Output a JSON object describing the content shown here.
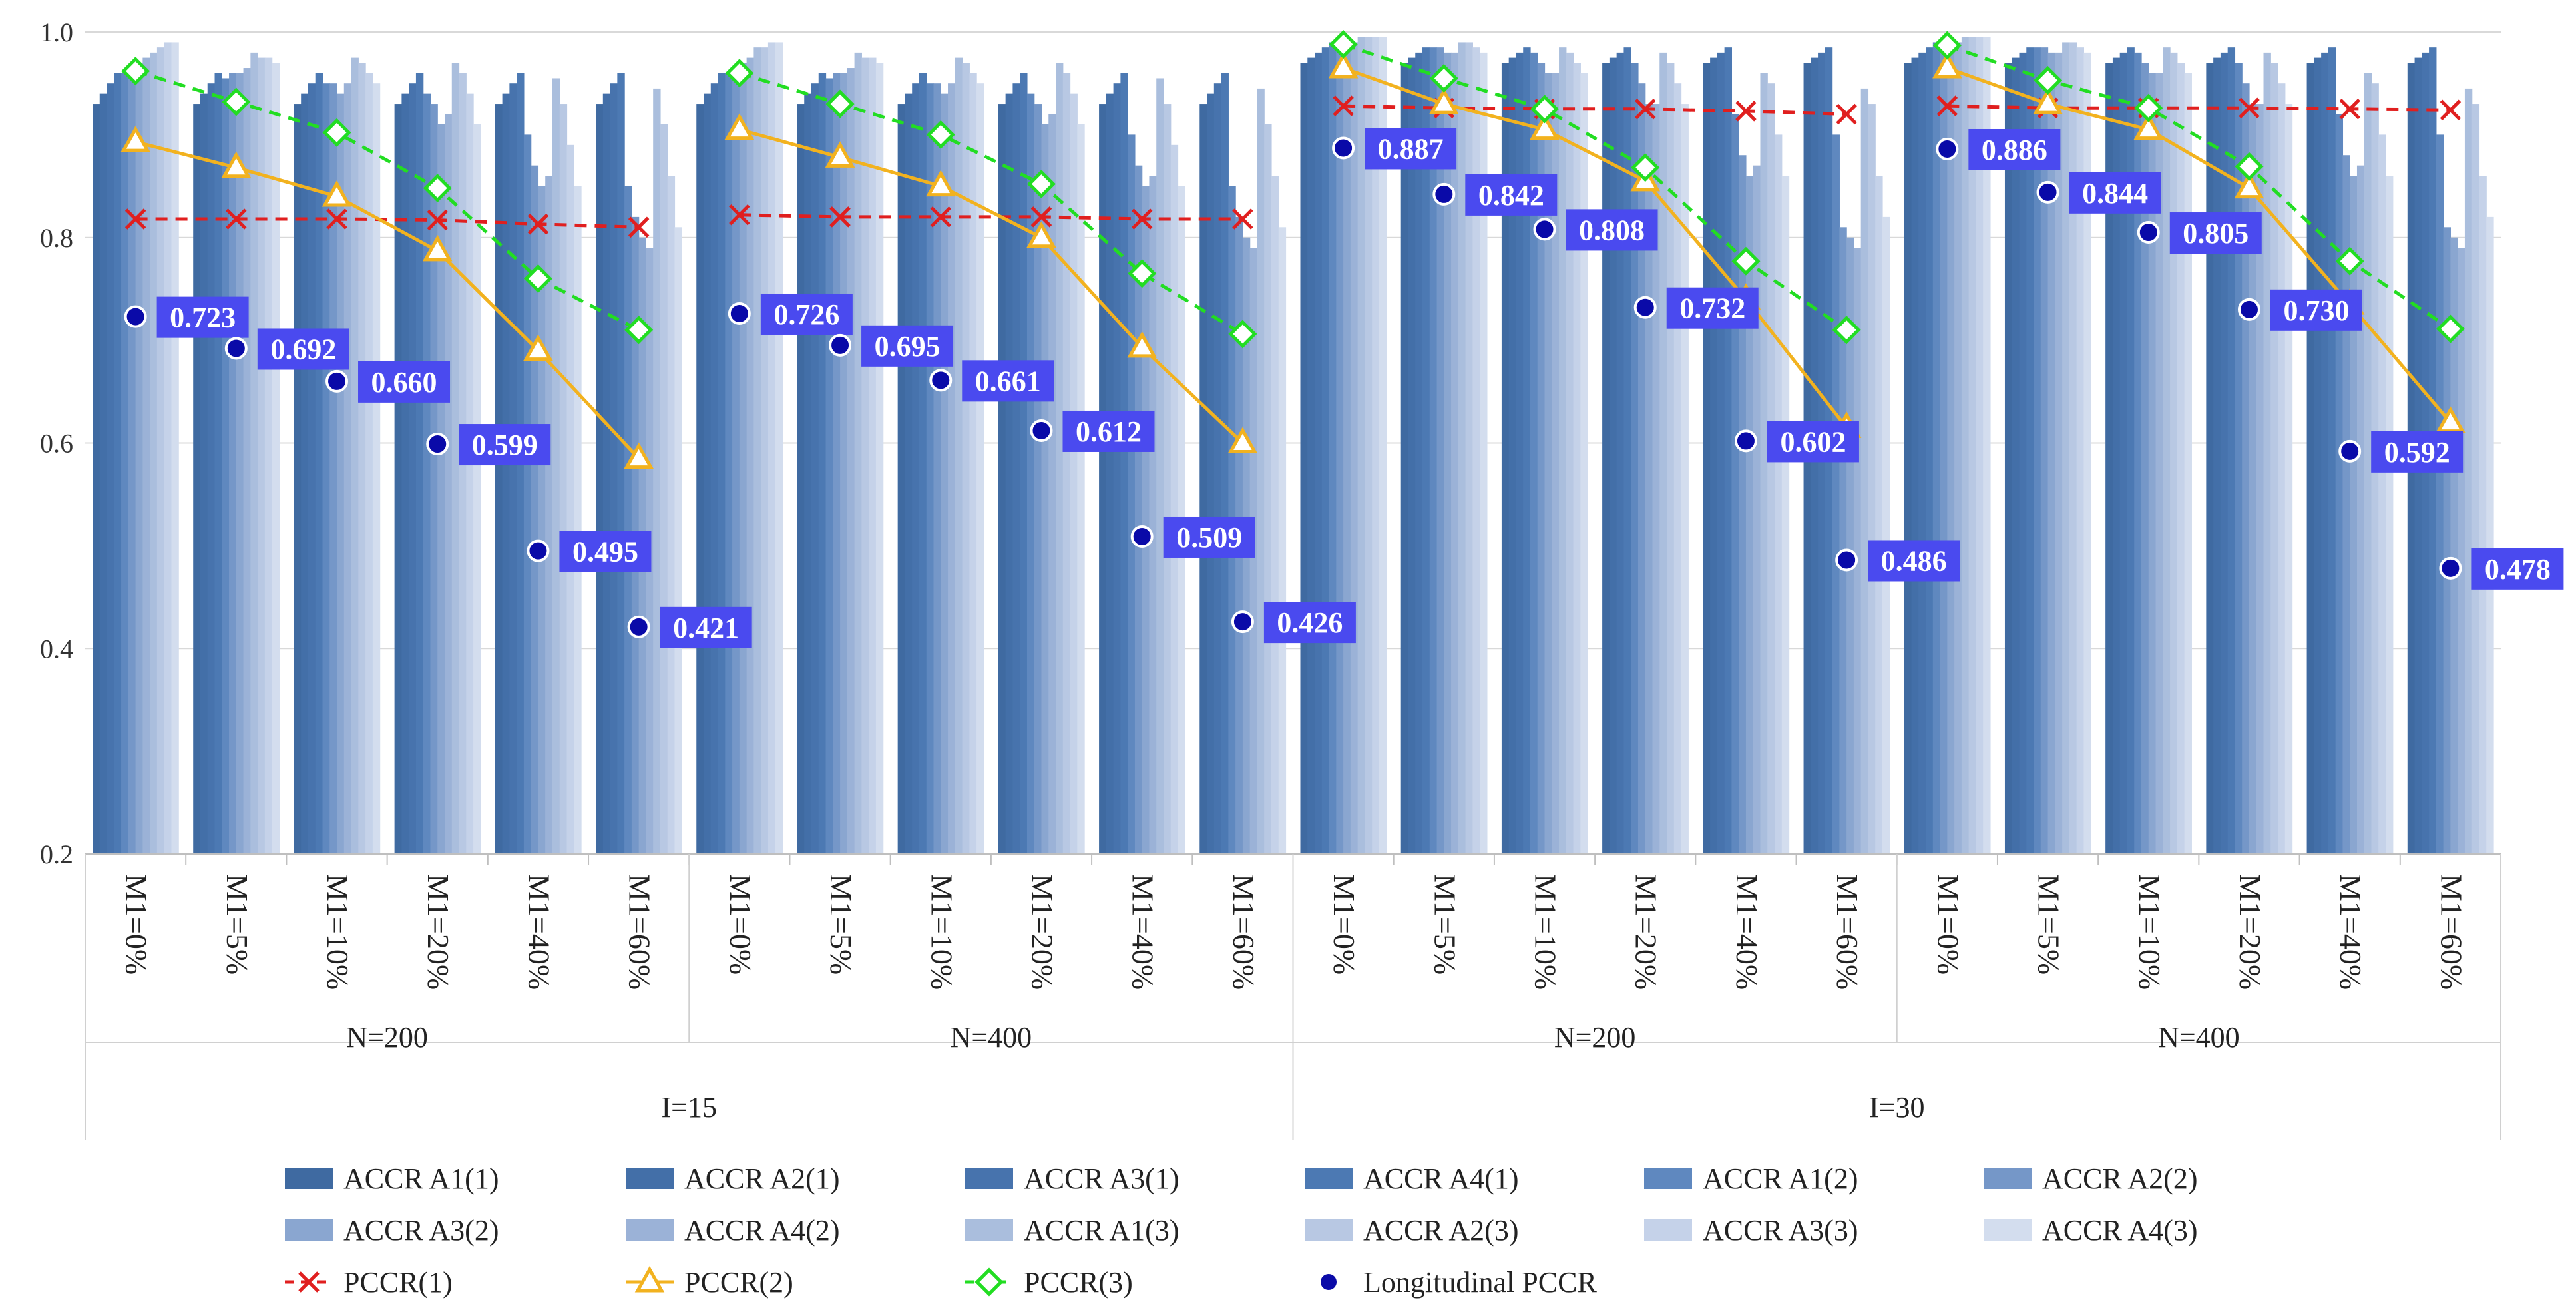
{
  "chart_data": {
    "type": "bar",
    "title": "",
    "xlabel": "",
    "ylabel": "",
    "ylim": [
      0.2,
      1.0
    ],
    "yticks": [
      "0.2",
      "0.4",
      "0.6",
      "0.8",
      "1.0"
    ],
    "grid": true,
    "legend_position": "bottom",
    "x_levels": {
      "categories": [
        "M1=0%",
        "M1=5%",
        "M1=10%",
        "M1=20%",
        "M1=40%",
        "M1=60%",
        "M1=0%",
        "M1=5%",
        "M1=10%",
        "M1=20%",
        "M1=40%",
        "M1=60%",
        "M1=0%",
        "M1=5%",
        "M1=10%",
        "M1=20%",
        "M1=40%",
        "M1=60%",
        "M1=0%",
        "M1=5%",
        "M1=10%",
        "M1=20%",
        "M1=40%",
        "M1=60%"
      ],
      "n_groups": [
        "N=200",
        "N=400",
        "N=200",
        "N=400"
      ],
      "i_groups": [
        "I=15",
        "I=30"
      ]
    },
    "bar_series": [
      {
        "name": "ACCR A1(1)",
        "color": "#3f6aa1",
        "values": [
          0.93,
          0.93,
          0.93,
          0.93,
          0.93,
          0.93,
          0.93,
          0.93,
          0.93,
          0.93,
          0.93,
          0.93,
          0.97,
          0.97,
          0.97,
          0.97,
          0.97,
          0.97,
          0.97,
          0.97,
          0.97,
          0.97,
          0.97,
          0.97
        ]
      },
      {
        "name": "ACCR A2(1)",
        "color": "#436fa8",
        "values": [
          0.94,
          0.94,
          0.94,
          0.94,
          0.94,
          0.94,
          0.94,
          0.94,
          0.94,
          0.94,
          0.94,
          0.94,
          0.975,
          0.975,
          0.975,
          0.975,
          0.975,
          0.975,
          0.975,
          0.975,
          0.975,
          0.975,
          0.975,
          0.975
        ]
      },
      {
        "name": "ACCR A3(1)",
        "color": "#4773ad",
        "values": [
          0.95,
          0.95,
          0.95,
          0.95,
          0.95,
          0.95,
          0.95,
          0.95,
          0.95,
          0.95,
          0.95,
          0.95,
          0.98,
          0.98,
          0.98,
          0.98,
          0.98,
          0.98,
          0.98,
          0.98,
          0.98,
          0.98,
          0.98,
          0.98
        ]
      },
      {
        "name": "ACCR A4(1)",
        "color": "#4c79b3",
        "values": [
          0.96,
          0.96,
          0.96,
          0.96,
          0.96,
          0.96,
          0.96,
          0.96,
          0.96,
          0.96,
          0.96,
          0.96,
          0.985,
          0.985,
          0.985,
          0.985,
          0.985,
          0.985,
          0.985,
          0.985,
          0.985,
          0.985,
          0.985,
          0.985
        ]
      },
      {
        "name": "ACCR A1(2)",
        "color": "#5f88bf",
        "values": [
          0.96,
          0.955,
          0.95,
          0.94,
          0.9,
          0.85,
          0.96,
          0.955,
          0.95,
          0.94,
          0.9,
          0.85,
          0.99,
          0.985,
          0.98,
          0.97,
          0.92,
          0.9,
          0.99,
          0.985,
          0.98,
          0.97,
          0.92,
          0.9
        ]
      },
      {
        "name": "ACCR A2(2)",
        "color": "#7597c8",
        "values": [
          0.965,
          0.96,
          0.95,
          0.93,
          0.87,
          0.82,
          0.965,
          0.96,
          0.95,
          0.93,
          0.87,
          0.82,
          0.99,
          0.985,
          0.97,
          0.95,
          0.88,
          0.81,
          0.99,
          0.985,
          0.97,
          0.95,
          0.88,
          0.81
        ]
      },
      {
        "name": "ACCR A3(2)",
        "color": "#8aa6d0",
        "values": [
          0.97,
          0.96,
          0.94,
          0.91,
          0.85,
          0.8,
          0.97,
          0.96,
          0.94,
          0.91,
          0.85,
          0.8,
          0.99,
          0.98,
          0.96,
          0.93,
          0.86,
          0.8,
          0.99,
          0.98,
          0.96,
          0.93,
          0.86,
          0.8
        ]
      },
      {
        "name": "ACCR A4(2)",
        "color": "#9bb2d7",
        "values": [
          0.975,
          0.965,
          0.95,
          0.92,
          0.86,
          0.79,
          0.975,
          0.965,
          0.95,
          0.92,
          0.86,
          0.79,
          0.99,
          0.98,
          0.96,
          0.93,
          0.87,
          0.79,
          0.99,
          0.98,
          0.96,
          0.93,
          0.87,
          0.79
        ]
      },
      {
        "name": "ACCR A1(3)",
        "color": "#aabedd",
        "values": [
          0.98,
          0.98,
          0.975,
          0.97,
          0.955,
          0.945,
          0.985,
          0.98,
          0.975,
          0.97,
          0.955,
          0.945,
          0.995,
          0.99,
          0.985,
          0.98,
          0.96,
          0.945,
          0.995,
          0.99,
          0.985,
          0.98,
          0.96,
          0.945
        ]
      },
      {
        "name": "ACCR A2(3)",
        "color": "#b8c8e3",
        "values": [
          0.985,
          0.975,
          0.97,
          0.96,
          0.93,
          0.91,
          0.985,
          0.975,
          0.97,
          0.96,
          0.93,
          0.91,
          0.995,
          0.99,
          0.98,
          0.97,
          0.95,
          0.93,
          0.995,
          0.99,
          0.98,
          0.97,
          0.95,
          0.93
        ]
      },
      {
        "name": "ACCR A3(3)",
        "color": "#c5d2e9",
        "values": [
          0.99,
          0.975,
          0.96,
          0.94,
          0.89,
          0.86,
          0.99,
          0.975,
          0.96,
          0.94,
          0.89,
          0.86,
          0.995,
          0.985,
          0.97,
          0.95,
          0.9,
          0.86,
          0.995,
          0.985,
          0.97,
          0.95,
          0.9,
          0.86
        ]
      },
      {
        "name": "ACCR A4(3)",
        "color": "#d3ddee",
        "values": [
          0.99,
          0.97,
          0.95,
          0.91,
          0.85,
          0.81,
          0.99,
          0.97,
          0.95,
          0.91,
          0.85,
          0.81,
          0.995,
          0.98,
          0.96,
          0.93,
          0.86,
          0.82,
          0.995,
          0.98,
          0.96,
          0.93,
          0.86,
          0.82
        ]
      }
    ],
    "line_series": [
      {
        "name": "PCCR(1)",
        "color": "#e01f1f",
        "marker": "x",
        "dash": "dashed",
        "values": [
          0.818,
          0.818,
          0.818,
          0.817,
          0.813,
          0.81,
          0.822,
          0.82,
          0.82,
          0.82,
          0.818,
          0.818,
          0.928,
          0.926,
          0.925,
          0.925,
          0.923,
          0.92,
          0.928,
          0.926,
          0.926,
          0.926,
          0.925,
          0.924
        ]
      },
      {
        "name": "PCCR(2)",
        "color": "#f2b21f",
        "marker": "triangle",
        "dash": "solid",
        "values": [
          0.893,
          0.868,
          0.84,
          0.787,
          0.69,
          0.585,
          0.905,
          0.878,
          0.85,
          0.8,
          0.693,
          0.6,
          0.965,
          0.93,
          0.905,
          0.855,
          0.74,
          0.615,
          0.965,
          0.93,
          0.905,
          0.848,
          0.735,
          0.62
        ]
      },
      {
        "name": "PCCR(3)",
        "color": "#22dd22",
        "marker": "diamond",
        "dash": "dashed",
        "values": [
          0.962,
          0.932,
          0.902,
          0.848,
          0.76,
          0.71,
          0.96,
          0.93,
          0.9,
          0.852,
          0.765,
          0.706,
          0.988,
          0.955,
          0.925,
          0.868,
          0.777,
          0.71,
          0.987,
          0.953,
          0.926,
          0.869,
          0.777,
          0.711
        ]
      }
    ],
    "point_series": {
      "name": "Longitudinal PCCR",
      "color": "#0a0aa8",
      "values": [
        0.723,
        0.692,
        0.66,
        0.599,
        0.495,
        0.421,
        0.726,
        0.695,
        0.661,
        0.612,
        0.509,
        0.426,
        0.887,
        0.842,
        0.808,
        0.732,
        0.602,
        0.486,
        0.886,
        0.844,
        0.805,
        0.73,
        0.592,
        0.478
      ],
      "labels": [
        "0.723",
        "0.692",
        "0.660",
        "0.599",
        "0.495",
        "0.421",
        "0.726",
        "0.695",
        "0.661",
        "0.612",
        "0.509",
        "0.426",
        "0.887",
        "0.842",
        "0.808",
        "0.732",
        "0.602",
        "0.486",
        "0.886",
        "0.844",
        "0.805",
        "0.730",
        "0.592",
        "0.478"
      ],
      "label_color": "#4a4aef"
    },
    "legend_entries": [
      "ACCR A1(1)",
      "ACCR A2(1)",
      "ACCR A3(1)",
      "ACCR A4(1)",
      "ACCR A1(2)",
      "ACCR A2(2)",
      "ACCR A3(2)",
      "ACCR A4(2)",
      "ACCR A1(3)",
      "ACCR A2(3)",
      "ACCR A3(3)",
      "ACCR A4(3)",
      "PCCR(1)",
      "PCCR(2)",
      "PCCR(3)",
      "Longitudinal PCCR"
    ]
  }
}
